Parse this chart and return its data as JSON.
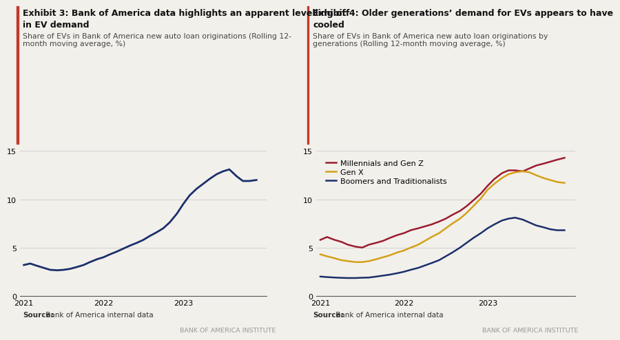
{
  "chart1": {
    "title_line1": "Exhibit 3: Bank of America data highlights an apparent levelling off",
    "title_line2": "in EV demand",
    "subtitle": "Share of EVs in Bank of America new auto loan originations (Rolling 12-\nmonth moving average, %)",
    "ylim": [
      0,
      15
    ],
    "yticks": [
      0,
      5,
      10,
      15
    ],
    "xtick_labels": [
      "2021",
      "2022",
      "2023"
    ],
    "line_color": "#1a2f6b",
    "x": [
      0.0,
      0.08,
      0.17,
      0.25,
      0.33,
      0.42,
      0.5,
      0.58,
      0.67,
      0.75,
      0.83,
      0.92,
      1.0,
      1.08,
      1.17,
      1.25,
      1.33,
      1.42,
      1.5,
      1.58,
      1.67,
      1.75,
      1.83,
      1.92,
      2.0,
      2.08,
      2.17,
      2.25,
      2.33,
      2.42,
      2.5,
      2.58,
      2.67,
      2.75,
      2.83,
      2.92
    ],
    "y": [
      3.2,
      3.35,
      3.1,
      2.9,
      2.7,
      2.65,
      2.7,
      2.8,
      3.0,
      3.2,
      3.5,
      3.8,
      4.0,
      4.3,
      4.6,
      4.9,
      5.2,
      5.5,
      5.8,
      6.2,
      6.6,
      7.0,
      7.6,
      8.5,
      9.5,
      10.4,
      11.1,
      11.6,
      12.1,
      12.6,
      12.9,
      13.1,
      12.4,
      11.9,
      11.9,
      12.0
    ],
    "source_bold": "Source:",
    "source_text": " Bank of America internal data",
    "watermark": "BANK OF AMERICA INSTITUTE"
  },
  "chart2": {
    "title_line1": "Exhibit 4: Older generations’ demand for EVs appears to have",
    "title_line2": "cooled",
    "subtitle": "Share of EVs in Bank of America new auto loan originations by\ngenerations (Rolling 12-month moving average, %)",
    "ylim": [
      0,
      15
    ],
    "yticks": [
      0,
      5,
      10,
      15
    ],
    "xtick_labels": [
      "2021",
      "2022",
      "2023"
    ],
    "x": [
      0.0,
      0.08,
      0.17,
      0.25,
      0.33,
      0.42,
      0.5,
      0.58,
      0.67,
      0.75,
      0.83,
      0.92,
      1.0,
      1.08,
      1.17,
      1.25,
      1.33,
      1.42,
      1.5,
      1.58,
      1.67,
      1.75,
      1.83,
      1.92,
      2.0,
      2.08,
      2.17,
      2.25,
      2.33,
      2.42,
      2.5,
      2.58,
      2.67,
      2.75,
      2.83,
      2.92
    ],
    "millennials_color": "#9b1b30",
    "genx_color": "#d4a017",
    "boomers_color": "#1a2f6b",
    "millennials_y": [
      5.8,
      6.1,
      5.8,
      5.6,
      5.3,
      5.1,
      5.0,
      5.3,
      5.5,
      5.7,
      6.0,
      6.3,
      6.5,
      6.8,
      7.0,
      7.2,
      7.4,
      7.7,
      8.0,
      8.4,
      8.8,
      9.3,
      9.9,
      10.6,
      11.4,
      12.1,
      12.7,
      13.0,
      13.0,
      12.9,
      13.2,
      13.5,
      13.7,
      13.9,
      14.1,
      14.3
    ],
    "genx_y": [
      4.3,
      4.1,
      3.9,
      3.7,
      3.6,
      3.5,
      3.5,
      3.6,
      3.8,
      4.0,
      4.2,
      4.5,
      4.7,
      5.0,
      5.3,
      5.7,
      6.1,
      6.5,
      7.0,
      7.5,
      8.0,
      8.6,
      9.3,
      10.1,
      11.0,
      11.6,
      12.2,
      12.6,
      12.8,
      12.9,
      12.8,
      12.5,
      12.2,
      12.0,
      11.8,
      11.7
    ],
    "boomers_y": [
      2.0,
      1.95,
      1.9,
      1.87,
      1.85,
      1.85,
      1.88,
      1.9,
      2.0,
      2.1,
      2.2,
      2.35,
      2.5,
      2.7,
      2.9,
      3.15,
      3.4,
      3.7,
      4.1,
      4.5,
      5.0,
      5.5,
      6.0,
      6.5,
      7.0,
      7.4,
      7.8,
      8.0,
      8.1,
      7.9,
      7.6,
      7.3,
      7.1,
      6.9,
      6.8,
      6.8
    ],
    "legend_labels": [
      "Millennials and Gen Z",
      "Gen X",
      "Boomers and Traditionalists"
    ],
    "source_bold": "Source:",
    "source_text": " Bank of America internal data",
    "watermark": "BANK OF AMERICA INSTITUTE"
  },
  "bg_color": "#f2f0eb",
  "grid_color": "#cccccc",
  "accent_color": "#c0392b",
  "title_fontsize": 9.0,
  "subtitle_fontsize": 7.8,
  "tick_fontsize": 8.0,
  "source_fontsize": 7.5,
  "watermark_fontsize": 6.8,
  "legend_fontsize": 8.0
}
